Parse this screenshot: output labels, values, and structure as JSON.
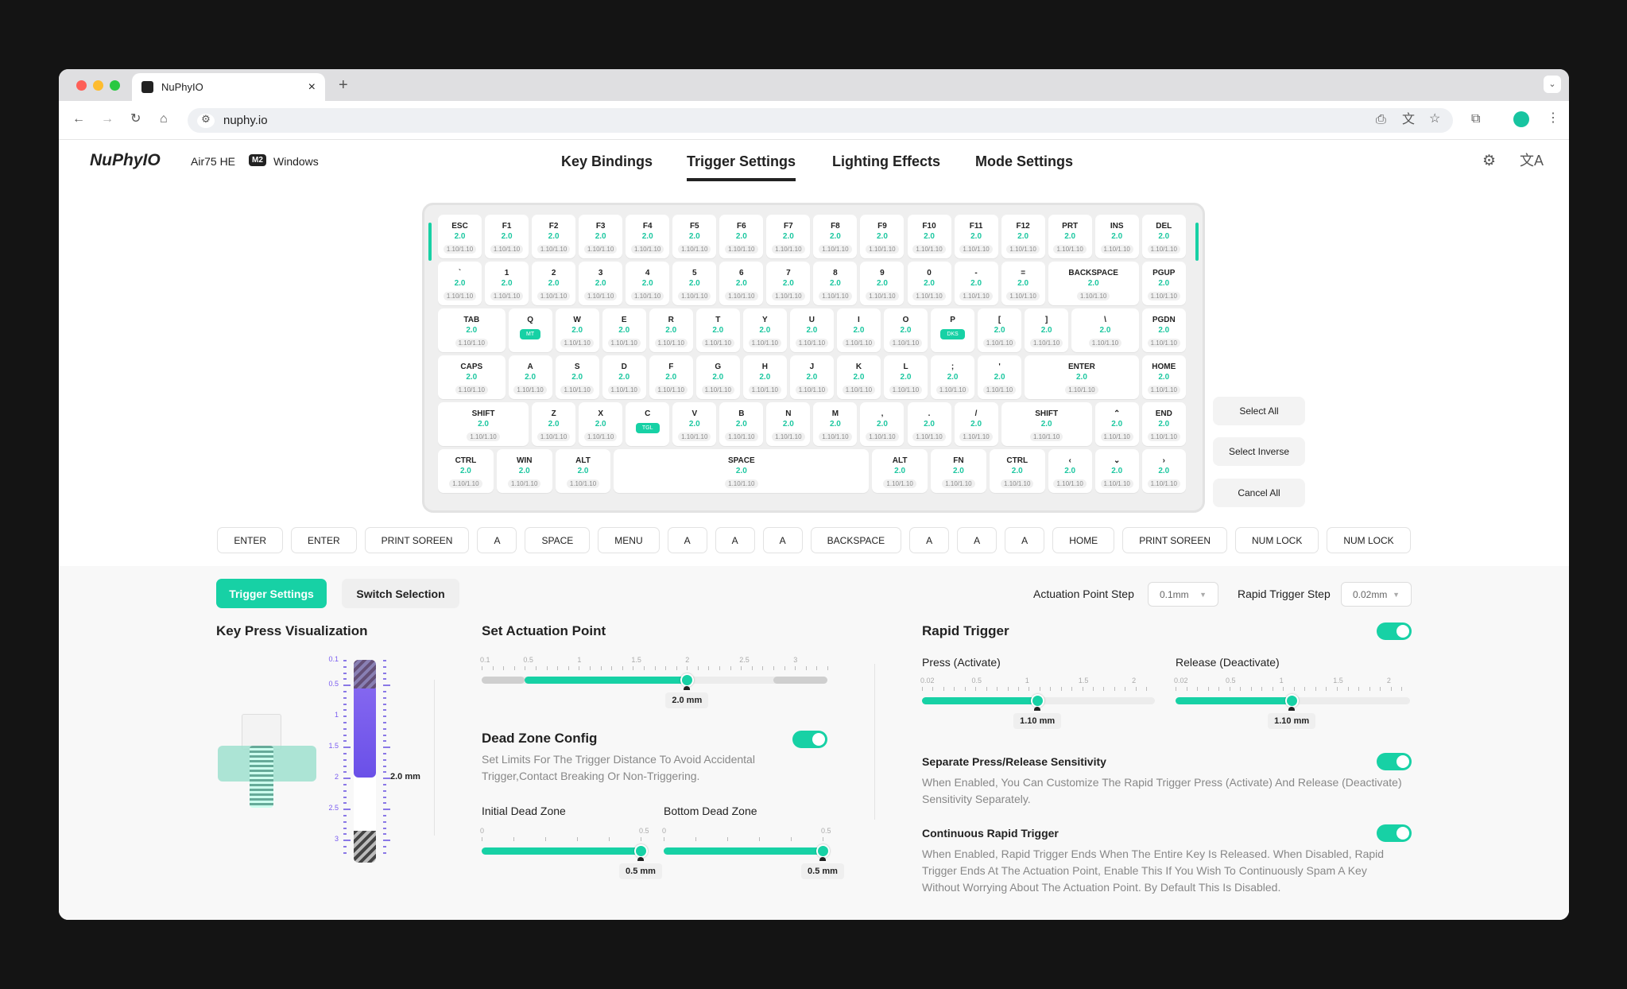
{
  "browser": {
    "tab_title": "NuPhyIO",
    "url": "nuphy.io",
    "new_tab": "+",
    "close": "×"
  },
  "app": {
    "logo": "NuPhyIO",
    "device": "Air75 HE",
    "mode_badge": "M2",
    "os": "Windows",
    "nav": [
      "Key Bindings",
      "Trigger Settings",
      "Lighting Effects",
      "Mode Settings"
    ],
    "active_nav": 1
  },
  "colors": {
    "accent": "#17d1a5",
    "purple": "#7a5cf0"
  },
  "keyboard": {
    "default_value": "2.0",
    "default_rt": "1.10/1.10",
    "rows": [
      [
        {
          "l": "ESC"
        },
        {
          "l": "F1"
        },
        {
          "l": "F2"
        },
        {
          "l": "F3"
        },
        {
          "l": "F4"
        },
        {
          "l": "F5"
        },
        {
          "l": "F6"
        },
        {
          "l": "F7"
        },
        {
          "l": "F8"
        },
        {
          "l": "F9"
        },
        {
          "l": "F10"
        },
        {
          "l": "F11"
        },
        {
          "l": "F12"
        },
        {
          "l": "PRT"
        },
        {
          "l": "INS"
        },
        {
          "l": "DEL"
        }
      ],
      [
        {
          "l": "`"
        },
        {
          "l": "1"
        },
        {
          "l": "2"
        },
        {
          "l": "3"
        },
        {
          "l": "4"
        },
        {
          "l": "5"
        },
        {
          "l": "6"
        },
        {
          "l": "7"
        },
        {
          "l": "8"
        },
        {
          "l": "9"
        },
        {
          "l": "0"
        },
        {
          "l": "-"
        },
        {
          "l": "="
        },
        {
          "l": "BACKSPACE"
        },
        {
          "l": "PGUP"
        }
      ],
      [
        {
          "l": "TAB"
        },
        {
          "l": "Q",
          "badge": "MT"
        },
        {
          "l": "W"
        },
        {
          "l": "E"
        },
        {
          "l": "R"
        },
        {
          "l": "T"
        },
        {
          "l": "Y"
        },
        {
          "l": "U"
        },
        {
          "l": "I"
        },
        {
          "l": "O"
        },
        {
          "l": "P",
          "badge": "DKS"
        },
        {
          "l": "["
        },
        {
          "l": "]"
        },
        {
          "l": "\\"
        },
        {
          "l": "PGDN"
        }
      ],
      [
        {
          "l": "CAPS"
        },
        {
          "l": "A"
        },
        {
          "l": "S"
        },
        {
          "l": "D"
        },
        {
          "l": "F"
        },
        {
          "l": "G"
        },
        {
          "l": "H"
        },
        {
          "l": "J"
        },
        {
          "l": "K"
        },
        {
          "l": "L"
        },
        {
          "l": ";"
        },
        {
          "l": "'"
        },
        {
          "l": "ENTER"
        },
        {
          "l": "HOME"
        }
      ],
      [
        {
          "l": "SHIFT"
        },
        {
          "l": "Z"
        },
        {
          "l": "X"
        },
        {
          "l": "C",
          "badge": "TGL"
        },
        {
          "l": "V"
        },
        {
          "l": "B"
        },
        {
          "l": "N"
        },
        {
          "l": "M"
        },
        {
          "l": ","
        },
        {
          "l": "."
        },
        {
          "l": "/"
        },
        {
          "l": "SHIFT"
        },
        {
          "l": "⌃"
        },
        {
          "l": "END"
        }
      ],
      [
        {
          "l": "CTRL"
        },
        {
          "l": "WIN"
        },
        {
          "l": "ALT"
        },
        {
          "l": "SPACE"
        },
        {
          "l": "ALT"
        },
        {
          "l": "FN"
        },
        {
          "l": "CTRL"
        },
        {
          "l": "‹"
        },
        {
          "l": "⌄"
        },
        {
          "l": "›"
        }
      ]
    ]
  },
  "selection_buttons": {
    "select_all": "Select All",
    "select_inverse": "Select Inverse",
    "cancel_all": "Cancel All"
  },
  "macro_keys": [
    "ENTER",
    "ENTER",
    "PRINT SOREEN",
    "A",
    "SPACE",
    "MENU",
    "A",
    "A",
    "A",
    "BACKSPACE",
    "A",
    "A",
    "A",
    "HOME",
    "PRINT SOREEN",
    "NUM LOCK",
    "NUM LOCK"
  ],
  "panel": {
    "tabs": [
      "Trigger Settings",
      "Switch Selection"
    ],
    "actuation_step_label": "Actuation Point Step",
    "actuation_step_value": "0.1mm",
    "rt_step_label": "Rapid Trigger Step",
    "rt_step_value": "0.02mm",
    "viz": {
      "title": "Key Press Visualization",
      "scale": [
        "0.1",
        "0.5",
        "1",
        "1.5",
        "2",
        "2.5",
        "3"
      ],
      "value_label": "2.0 mm",
      "value": 2.0
    },
    "actuation": {
      "title": "Set Actuation Point",
      "min": 0.1,
      "max": 3.3,
      "value": 2.0,
      "tip": "2.0 mm",
      "labels": [
        "0.1",
        "0.5",
        "1",
        "1.5",
        "2",
        "2.5",
        "3"
      ],
      "dead_top": 0.5,
      "dead_bottom": 2.8
    },
    "dead_zone": {
      "title": "Dead Zone Config",
      "enabled": true,
      "desc": "Set Limits For The Trigger Distance To Avoid Accidental Trigger,Contact Breaking Or Non-Triggering.",
      "initial": {
        "label": "Initial Dead Zone",
        "min": 0,
        "max": 0.5,
        "value": 0.5,
        "tip": "0.5 mm",
        "labels": [
          "0",
          "0.5"
        ]
      },
      "bottom": {
        "label": "Bottom Dead Zone",
        "min": 0,
        "max": 0.5,
        "value": 0.5,
        "tip": "0.5 mm",
        "labels": [
          "0",
          "0.5"
        ]
      }
    },
    "rapid": {
      "title": "Rapid Trigger",
      "enabled": true,
      "press": {
        "label": "Press (Activate)",
        "min": 0.02,
        "max": 2.2,
        "value": 1.1,
        "tip": "1.10 mm",
        "labels": [
          "0.02",
          "0.5",
          "1",
          "1.5",
          "2"
        ]
      },
      "release": {
        "label": "Release (Deactivate)",
        "min": 0.02,
        "max": 2.2,
        "value": 1.1,
        "tip": "1.10 mm",
        "labels": [
          "0.02",
          "0.5",
          "1",
          "1.5",
          "2"
        ]
      },
      "separate": {
        "title": "Separate Press/Release Sensitivity",
        "enabled": true,
        "desc": "When Enabled, You Can Customize The Rapid Trigger Press (Activate) And Release (Deactivate) Sensitivity Separately."
      },
      "continuous": {
        "title": "Continuous Rapid Trigger",
        "enabled": true,
        "desc": "When Enabled, Rapid Trigger Ends When The Entire Key Is Released. When Disabled, Rapid Trigger Ends At The Actuation Point, Enable This If You Wish To Continuously Spam A Key Without Worrying About The Actuation Point. By Default This Is Disabled."
      }
    }
  }
}
